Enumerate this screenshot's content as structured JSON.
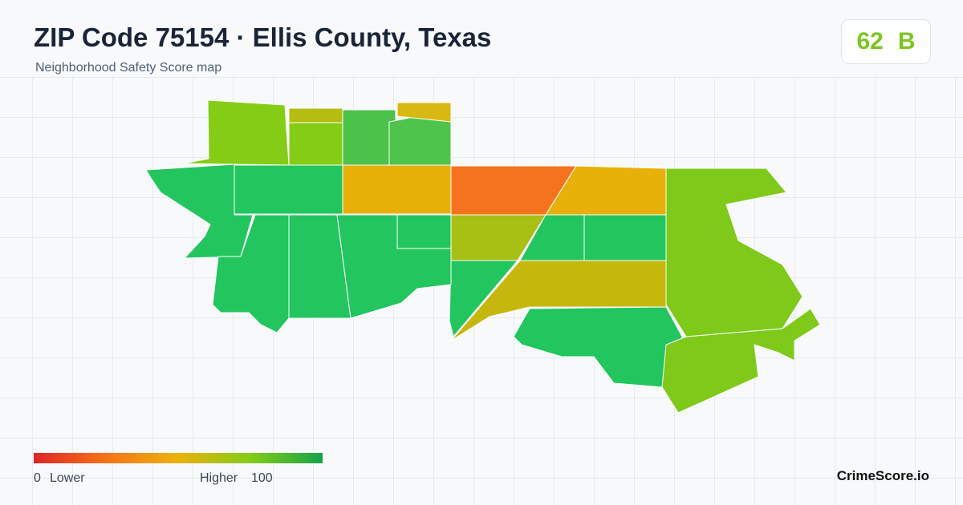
{
  "header": {
    "title": "ZIP Code 75154 · Ellis County, Texas",
    "subtitle": "Neighborhood Safety Score map"
  },
  "score": {
    "value": "62",
    "grade": "B"
  },
  "legend": {
    "min": "0",
    "low_label": "Lower",
    "high_label": "Higher",
    "max": "100"
  },
  "footer": {
    "brand": "CrimeScore.io"
  }
}
